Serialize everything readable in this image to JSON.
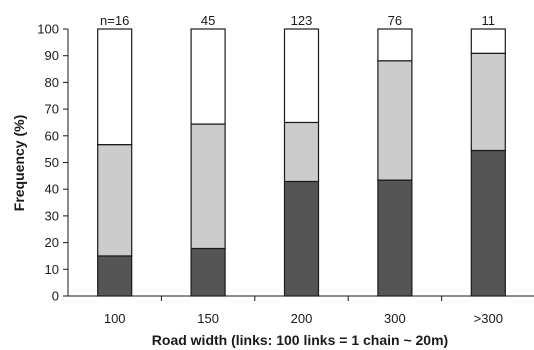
{
  "chart_data": {
    "type": "bar",
    "stacked": true,
    "title": "",
    "xlabel": "Road width (links: 100 links = 1 chain ~ 20m)",
    "ylabel": "Frequency (%)",
    "ylim": [
      0,
      100
    ],
    "yticks": [
      0,
      10,
      20,
      30,
      40,
      50,
      60,
      70,
      80,
      90,
      100
    ],
    "categories": [
      "100",
      "150",
      "200",
      "300",
      ">300"
    ],
    "sample_sizes": [
      "n=16",
      "45",
      "123",
      "76",
      "11"
    ],
    "series": [
      {
        "values": [
          15,
          17.8,
          42.9,
          43.4,
          54.5
        ],
        "color": "#555555"
      },
      {
        "values": [
          41.7,
          46.6,
          22.1,
          44.7,
          36.4
        ],
        "color": "#cccccc"
      },
      {
        "values": [
          43.3,
          35.6,
          35.0,
          11.9,
          9.1
        ],
        "color": "#ffffff"
      }
    ]
  }
}
